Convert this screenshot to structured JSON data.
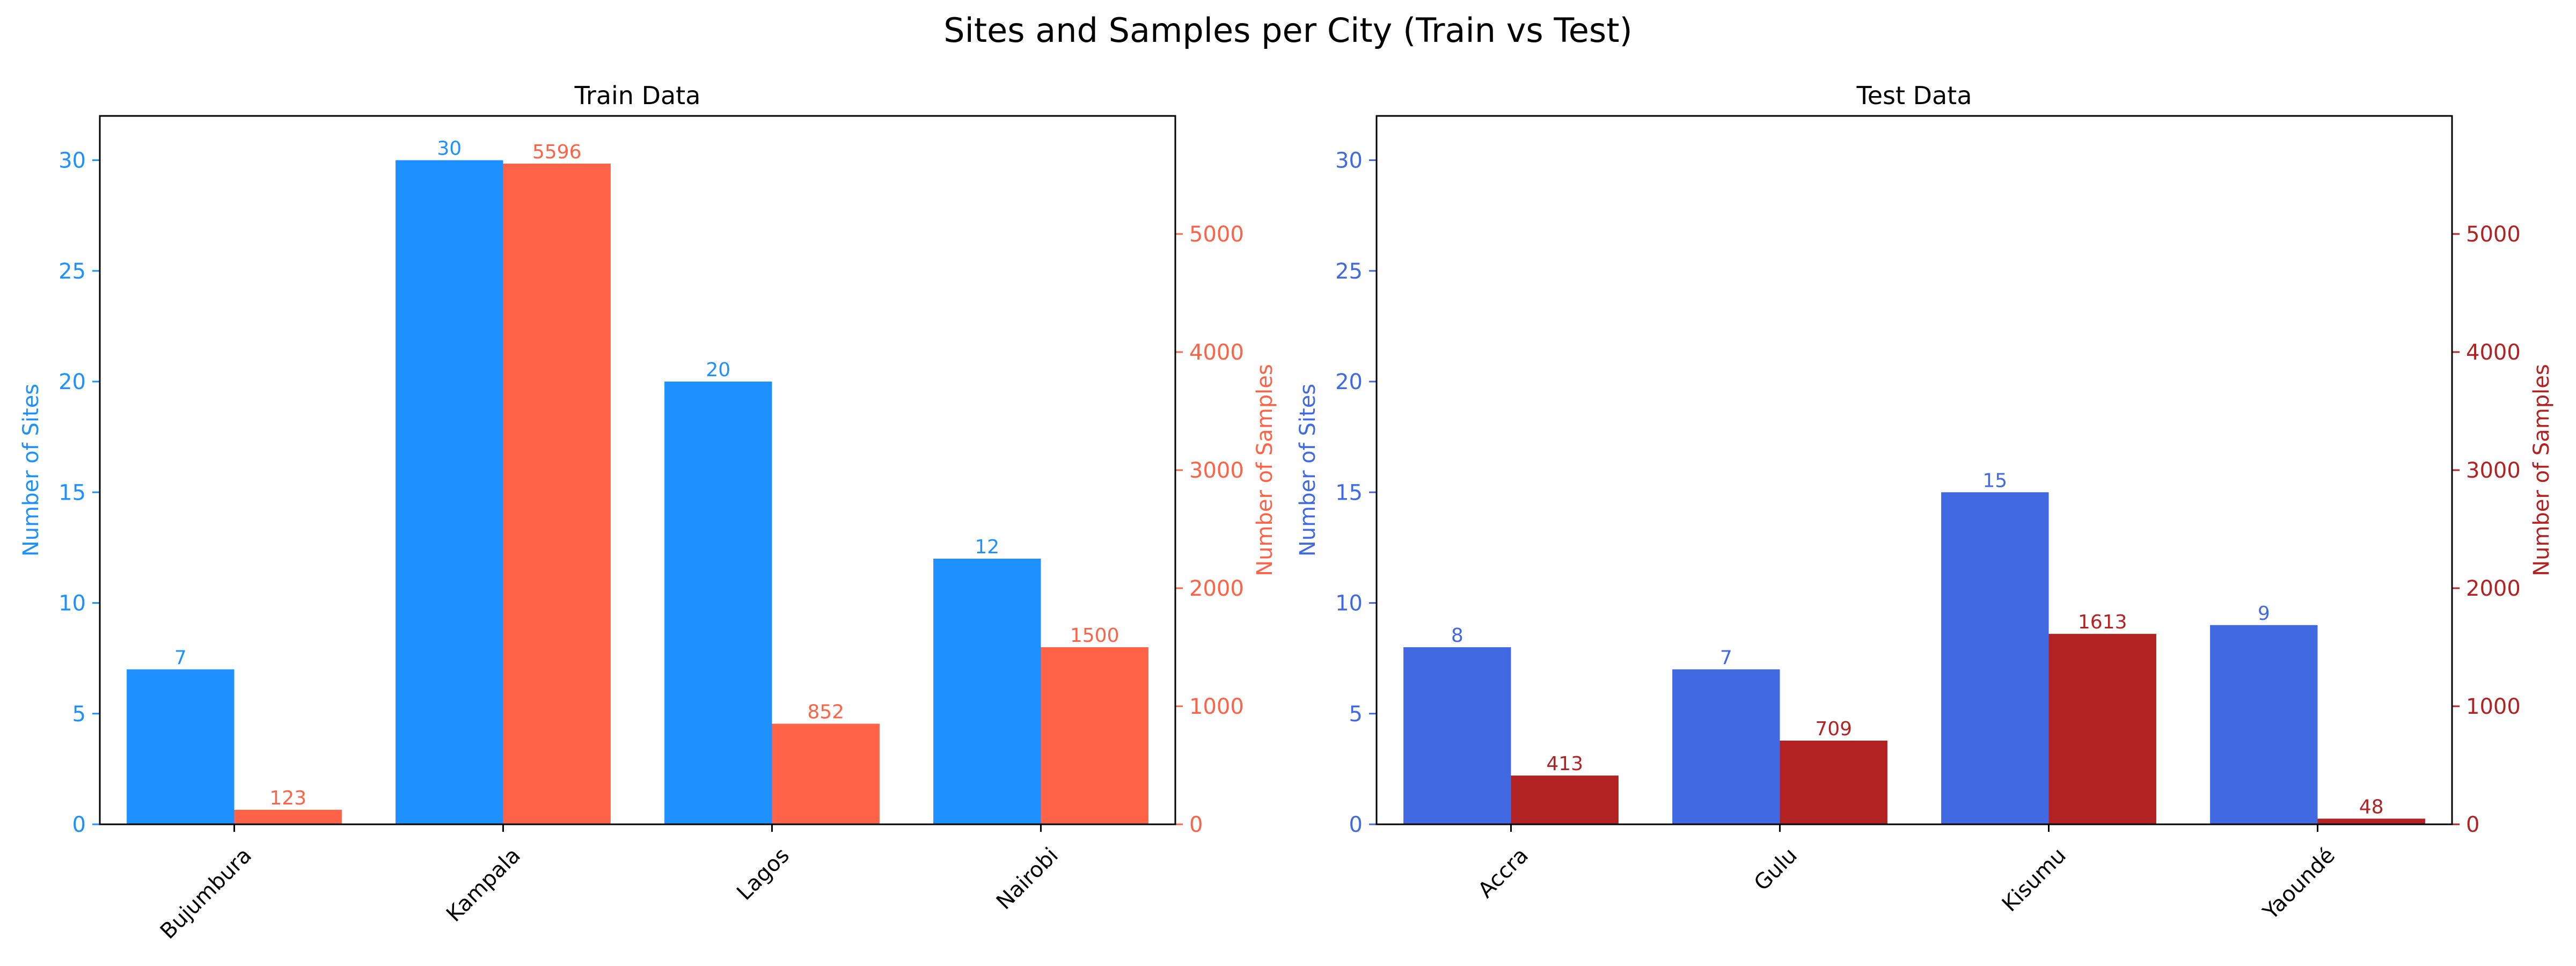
{
  "figure": {
    "title": "Sites and Samples per City (Train vs Test)"
  },
  "chart_data": [
    {
      "type": "bar",
      "title": "Train Data",
      "categories": [
        "Bujumbura",
        "Kampala",
        "Lagos",
        "Nairobi"
      ],
      "xlabel": "",
      "ylabel": "Number of Sites",
      "y2label": "Number of Samples",
      "ylim": [
        0,
        32
      ],
      "y2lim": [
        0,
        6000
      ],
      "yticks": [
        0,
        5,
        10,
        15,
        20,
        25,
        30
      ],
      "y2ticks": [
        0,
        1000,
        2000,
        3000,
        4000,
        5000
      ],
      "series": [
        {
          "name": "Number of Sites",
          "axis": "left",
          "color": "#1e90ff",
          "values": [
            7,
            30,
            20,
            12
          ]
        },
        {
          "name": "Number of Samples",
          "axis": "right",
          "color": "#ff6347",
          "values": [
            123,
            5596,
            852,
            1500
          ]
        }
      ],
      "grid": false
    },
    {
      "type": "bar",
      "title": "Test Data",
      "categories": [
        "Accra",
        "Gulu",
        "Kisumu",
        "Yaoundé"
      ],
      "xlabel": "",
      "ylabel": "Number of Sites",
      "y2label": "Number of Samples",
      "ylim": [
        0,
        32
      ],
      "y2lim": [
        0,
        6000
      ],
      "yticks": [
        0,
        5,
        10,
        15,
        20,
        25,
        30
      ],
      "y2ticks": [
        0,
        1000,
        2000,
        3000,
        4000,
        5000
      ],
      "series": [
        {
          "name": "Number of Sites",
          "axis": "left",
          "color": "#4169e1",
          "values": [
            8,
            7,
            15,
            9
          ]
        },
        {
          "name": "Number of Samples",
          "axis": "right",
          "color": "#b22222",
          "values": [
            413,
            709,
            1613,
            48
          ]
        }
      ],
      "grid": false
    }
  ]
}
